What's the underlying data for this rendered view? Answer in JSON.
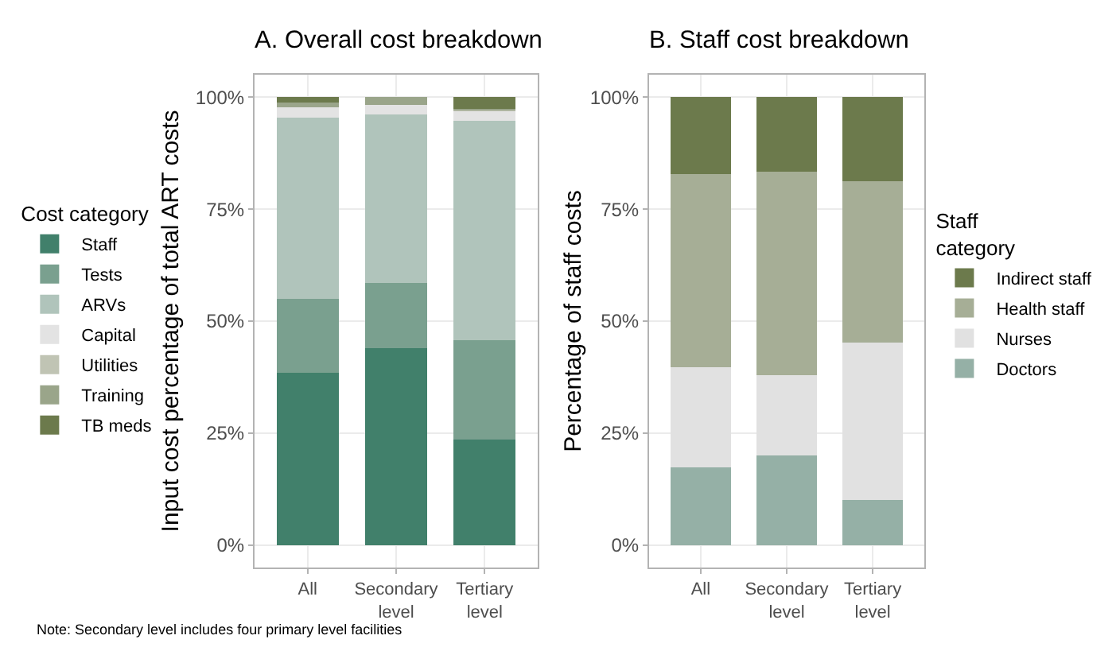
{
  "chart_data": [
    {
      "type": "bar",
      "title": "A. Overall cost breakdown",
      "ylabel": "Input cost percentage of total ART costs",
      "legend_title": "Cost category",
      "categories": [
        "All",
        "Secondary level",
        "Tertiary level"
      ],
      "stacked": true,
      "legend": "left",
      "grid": true,
      "series": [
        {
          "name": "Staff",
          "color": "#41806b",
          "values": [
            38.5,
            44,
            23.5
          ]
        },
        {
          "name": "Tests",
          "color": "#7aa08f",
          "values": [
            16.5,
            14.5,
            22.3
          ]
        },
        {
          "name": "ARVs",
          "color": "#b0c4bb",
          "values": [
            40.5,
            37.6,
            49
          ]
        },
        {
          "name": "Capital",
          "color": "#e3e3e3",
          "values": [
            2.2,
            2.2,
            2.1
          ]
        },
        {
          "name": "Utilities",
          "color": "#c0c4b4",
          "values": [
            null,
            null,
            0.2
          ]
        },
        {
          "name": "Training",
          "color": "#9aa58a",
          "values": [
            1.1,
            1.7,
            0.3
          ]
        },
        {
          "name": "TB meds",
          "color": "#6c7a4c",
          "values": [
            1.2,
            0,
            2.6
          ]
        }
      ],
      "ylim": [
        -5,
        105
      ],
      "yticks": [
        {
          "value": 0,
          "label": "0%"
        },
        {
          "value": 25,
          "label": "25%"
        },
        {
          "value": 50,
          "label": "50%"
        },
        {
          "value": 75,
          "label": "75%"
        },
        {
          "value": 100,
          "label": "100%"
        }
      ],
      "annotations": [
        "Note: Secondary level includes four primary level facilities"
      ]
    },
    {
      "type": "bar",
      "title": "B. Staff cost breakdown",
      "ylabel": "Percentage of staff costs",
      "legend_title": "Staff category",
      "categories": [
        "All",
        "Secondary level",
        "Tertiary level"
      ],
      "stacked": true,
      "legend": "right",
      "grid": true,
      "series": [
        {
          "name": "Doctors",
          "color": "#95b0a6",
          "values": [
            17.3,
            20,
            10.1
          ]
        },
        {
          "name": "Nurses",
          "color": "#e1e1e1",
          "values": [
            22.5,
            17.9,
            35.2
          ]
        },
        {
          "name": "Health staff",
          "color": "#a6ae96",
          "values": [
            43,
            45.4,
            35.9
          ]
        },
        {
          "name": "Indirect staff",
          "color": "#6c7a4c",
          "values": [
            17.2,
            16.7,
            18.8
          ]
        }
      ],
      "ylim": [
        -5,
        105
      ],
      "yticks": [
        {
          "value": 0,
          "label": "0%"
        },
        {
          "value": 25,
          "label": "25%"
        },
        {
          "value": 50,
          "label": "50%"
        },
        {
          "value": 75,
          "label": "75%"
        },
        {
          "value": 100,
          "label": "100%"
        }
      ]
    }
  ]
}
